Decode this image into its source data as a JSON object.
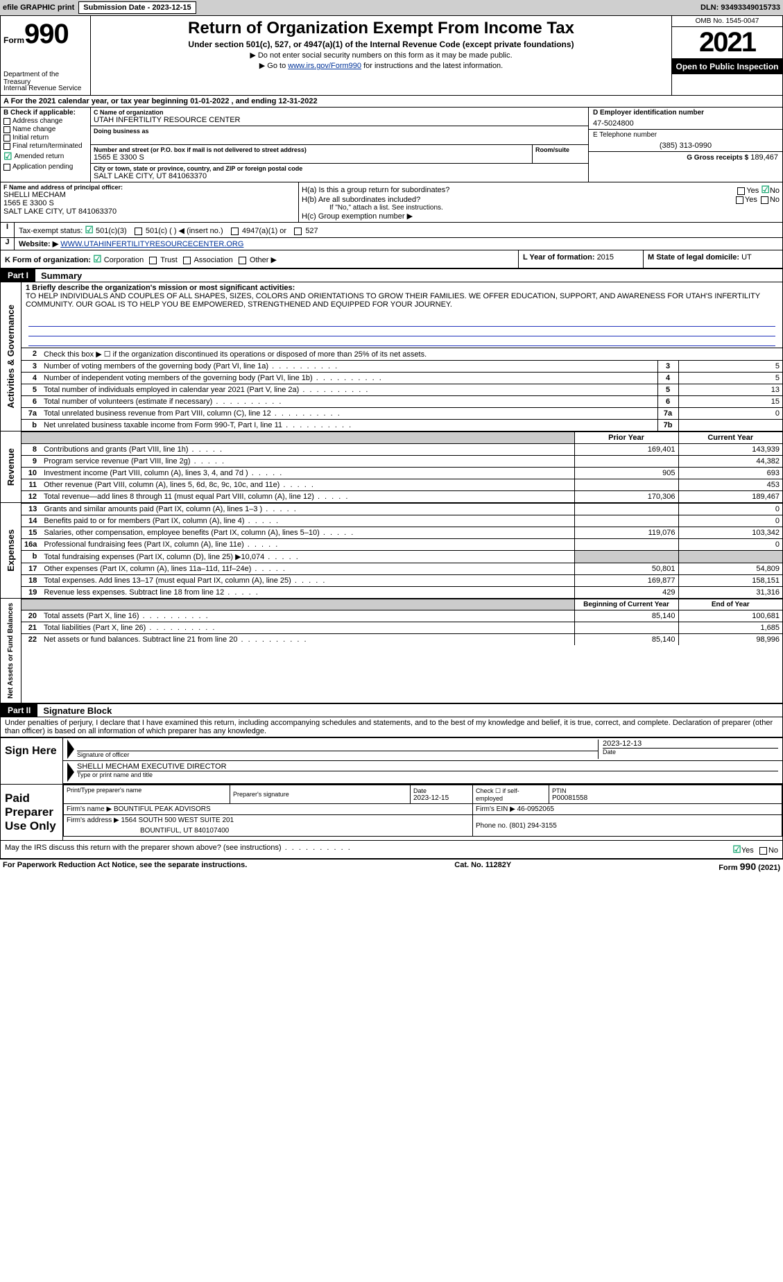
{
  "topbar": {
    "efile": "efile GRAPHIC print",
    "submission_label": "Submission Date - 2023-12-15",
    "dln": "DLN: 93493349015733"
  },
  "header": {
    "form_label": "Form",
    "form_number": "990",
    "dept1": "Department of the Treasury",
    "dept2": "Internal Revenue Service",
    "title": "Return of Organization Exempt From Income Tax",
    "subtitle": "Under section 501(c), 527, or 4947(a)(1) of the Internal Revenue Code (except private foundations)",
    "notice1": "▶ Do not enter social security numbers on this form as it may be made public.",
    "notice2_pre": "▶ Go to ",
    "notice2_link": "www.irs.gov/Form990",
    "notice2_post": " for instructions and the latest information.",
    "omb": "OMB No. 1545-0047",
    "year": "2021",
    "open_pub": "Open to Public Inspection"
  },
  "period": {
    "line_a": "A For the 2021 calendar year, or tax year beginning 01-01-2022    , and ending 12-31-2022"
  },
  "checkB": {
    "label": "B Check if applicable:",
    "addr": "Address change",
    "name": "Name change",
    "init": "Initial return",
    "final": "Final return/terminated",
    "amended": "Amended return",
    "app": "Application pending"
  },
  "blockC": {
    "name_label": "C Name of organization",
    "org": "UTAH INFERTILITY RESOURCE CENTER",
    "dba_label": "Doing business as",
    "addr_label": "Number and street (or P.O. box if mail is not delivered to street address)",
    "room_label": "Room/suite",
    "addr": "1565 E 3300 S",
    "city_label": "City or town, state or province, country, and ZIP or foreign postal code",
    "city": "SALT LAKE CITY, UT  841063370"
  },
  "blockD": {
    "label": "D Employer identification number",
    "ein": "47-5024800"
  },
  "blockE": {
    "label": "E Telephone number",
    "phone": "(385) 313-0990"
  },
  "blockG": {
    "label": "G Gross receipts $",
    "amount": "189,467"
  },
  "blockF": {
    "label": "F  Name and address of principal officer:",
    "name": "SHELLI MECHAM",
    "addr1": "1565 E 3300 S",
    "addr2": "SALT LAKE CITY, UT  841063370"
  },
  "blockH": {
    "a": "H(a)  Is this a group return for subordinates?",
    "b": "H(b)  Are all subordinates included?",
    "b_note": "If \"No,\" attach a list. See instructions.",
    "c": "H(c)  Group exemption number ▶",
    "yes": "Yes",
    "no": "No"
  },
  "blockI": {
    "label": "Tax-exempt status:",
    "opt1": "501(c)(3)",
    "opt2": "501(c) (   ) ◀ (insert no.)",
    "opt3": "4947(a)(1) or",
    "opt4": "527"
  },
  "blockJ": {
    "label": "Website: ▶",
    "url": " WWW.UTAHINFERTILITYRESOURCECENTER.ORG"
  },
  "blockK": {
    "label": "K Form of organization:",
    "corp": "Corporation",
    "trust": "Trust",
    "assoc": "Association",
    "other": "Other ▶"
  },
  "blockL": {
    "label": "L Year of formation: ",
    "year": "2015"
  },
  "blockM": {
    "label": "M State of legal domicile: ",
    "state": "UT"
  },
  "part1": {
    "label": "Part I",
    "title": "Summary"
  },
  "summary": {
    "section_ag": "Activities & Governance",
    "line1_label": "1  Briefly describe the organization's mission or most significant activities:",
    "line1_text": "TO HELP INDIVIDUALS AND COUPLES OF ALL SHAPES, SIZES, COLORS AND ORIENTATIONS TO GROW THEIR FAMILIES. WE OFFER EDUCATION, SUPPORT, AND AWARENESS FOR UTAH'S INFERTILITY COMMUNITY. OUR GOAL IS TO HELP YOU BE EMPOWERED, STRENGTHENED AND EQUIPPED FOR YOUR JOURNEY.",
    "line2": "Check this box ▶ ☐ if the organization discontinued its operations or disposed of more than 25% of its net assets.",
    "lines": [
      {
        "n": "3",
        "text": "Number of voting members of the governing body (Part VI, line 1a)",
        "box": "3",
        "val": "5"
      },
      {
        "n": "4",
        "text": "Number of independent voting members of the governing body (Part VI, line 1b)",
        "box": "4",
        "val": "5"
      },
      {
        "n": "5",
        "text": "Total number of individuals employed in calendar year 2021 (Part V, line 2a)",
        "box": "5",
        "val": "13"
      },
      {
        "n": "6",
        "text": "Total number of volunteers (estimate if necessary)",
        "box": "6",
        "val": "15"
      },
      {
        "n": "7a",
        "text": "Total unrelated business revenue from Part VIII, column (C), line 12",
        "box": "7a",
        "val": "0"
      },
      {
        "n": "b",
        "text": "Net unrelated business taxable income from Form 990-T, Part I, line 11",
        "box": "7b",
        "val": ""
      }
    ],
    "section_rev": "Revenue",
    "prior_year": "Prior Year",
    "current_year": "Current Year",
    "rev_lines": [
      {
        "n": "8",
        "text": "Contributions and grants (Part VIII, line 1h)",
        "py": "169,401",
        "cy": "143,939"
      },
      {
        "n": "9",
        "text": "Program service revenue (Part VIII, line 2g)",
        "py": "",
        "cy": "44,382"
      },
      {
        "n": "10",
        "text": "Investment income (Part VIII, column (A), lines 3, 4, and 7d )",
        "py": "905",
        "cy": "693"
      },
      {
        "n": "11",
        "text": "Other revenue (Part VIII, column (A), lines 5, 6d, 8c, 9c, 10c, and 11e)",
        "py": "",
        "cy": "453"
      },
      {
        "n": "12",
        "text": "Total revenue—add lines 8 through 11 (must equal Part VIII, column (A), line 12)",
        "py": "170,306",
        "cy": "189,467"
      }
    ],
    "section_exp": "Expenses",
    "exp_lines": [
      {
        "n": "13",
        "text": "Grants and similar amounts paid (Part IX, column (A), lines 1–3 )",
        "py": "",
        "cy": "0"
      },
      {
        "n": "14",
        "text": "Benefits paid to or for members (Part IX, column (A), line 4)",
        "py": "",
        "cy": "0"
      },
      {
        "n": "15",
        "text": "Salaries, other compensation, employee benefits (Part IX, column (A), lines 5–10)",
        "py": "119,076",
        "cy": "103,342"
      },
      {
        "n": "16a",
        "text": "Professional fundraising fees (Part IX, column (A), line 11e)",
        "py": "",
        "cy": "0"
      },
      {
        "n": "b",
        "text": "Total fundraising expenses (Part IX, column (D), line 25) ▶10,074",
        "py": "shaded",
        "cy": "shaded"
      },
      {
        "n": "17",
        "text": "Other expenses (Part IX, column (A), lines 11a–11d, 11f–24e)",
        "py": "50,801",
        "cy": "54,809"
      },
      {
        "n": "18",
        "text": "Total expenses. Add lines 13–17 (must equal Part IX, column (A), line 25)",
        "py": "169,877",
        "cy": "158,151"
      },
      {
        "n": "19",
        "text": "Revenue less expenses. Subtract line 18 from line 12",
        "py": "429",
        "cy": "31,316"
      }
    ],
    "section_na": "Net Assets or Fund Balances",
    "begin_year": "Beginning of Current Year",
    "end_year": "End of Year",
    "na_lines": [
      {
        "n": "20",
        "text": "Total assets (Part X, line 16)",
        "py": "85,140",
        "cy": "100,681"
      },
      {
        "n": "21",
        "text": "Total liabilities (Part X, line 26)",
        "py": "",
        "cy": "1,685"
      },
      {
        "n": "22",
        "text": "Net assets or fund balances. Subtract line 21 from line 20",
        "py": "85,140",
        "cy": "98,996"
      }
    ]
  },
  "part2": {
    "label": "Part II",
    "title": "Signature Block",
    "penalties": "Under penalties of perjury, I declare that I have examined this return, including accompanying schedules and statements, and to the best of my knowledge and belief, it is true, correct, and complete. Declaration of preparer (other than officer) is based on all information of which preparer has any knowledge."
  },
  "sign": {
    "sign_here": "Sign Here",
    "sig_label": "Signature of officer",
    "date_label": "Date",
    "date": "2023-12-13",
    "name": "SHELLI MECHAM  EXECUTIVE DIRECTOR",
    "name_label": "Type or print name and title"
  },
  "preparer": {
    "label": "Paid Preparer Use Only",
    "print_label": "Print/Type preparer's name",
    "sig_label": "Preparer's signature",
    "date_label": "Date",
    "date": "2023-12-15",
    "check_label": "Check ☐ if self-employed",
    "ptin_label": "PTIN",
    "ptin": "P00081558",
    "firm_label": "Firm's name    ▶",
    "firm": "BOUNTIFUL PEAK ADVISORS",
    "ein_label": "Firm's EIN ▶",
    "ein": "46-0952065",
    "addr_label": "Firm's address ▶",
    "addr": "1564 SOUTH 500 WEST SUITE 201",
    "addr2": "BOUNTIFUL, UT  840107400",
    "phone_label": "Phone no.",
    "phone": "(801) 294-3155"
  },
  "discuss": {
    "text": "May the IRS discuss this return with the preparer shown above? (see instructions)",
    "yes": "Yes",
    "no": "No"
  },
  "footer": {
    "paperwork": "For Paperwork Reduction Act Notice, see the separate instructions.",
    "cat": "Cat. No. 11282Y",
    "form": "Form 990 (2021)"
  },
  "colors": {
    "link": "#003399",
    "checked": "#28a745"
  }
}
